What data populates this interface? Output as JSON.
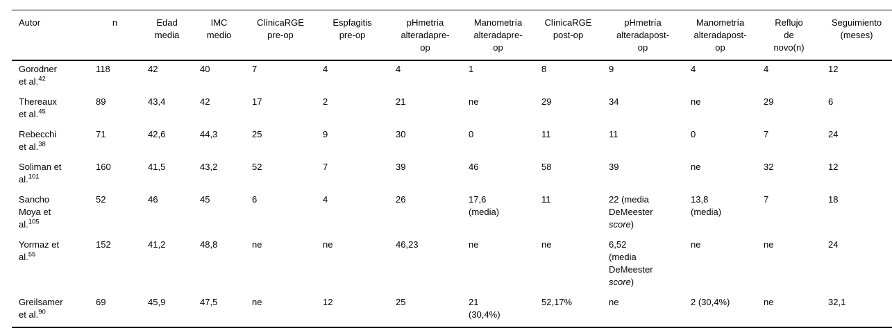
{
  "colors": {
    "background": "#ffffff",
    "text": "#000000",
    "rule": "#000000"
  },
  "table": {
    "columns": [
      {
        "label": "Autor"
      },
      {
        "label": "n"
      },
      {
        "label": "Edad\nmedia"
      },
      {
        "label": "IMC\nmedio"
      },
      {
        "label": "ClínicaRGE\npre-op"
      },
      {
        "label": "Espfagitis\npre-op"
      },
      {
        "label": "pHmetría\nalteradapre-\nop"
      },
      {
        "label": "Manometría\nalteradapre-\nop"
      },
      {
        "label": "ClínicaRGE\npost-op"
      },
      {
        "label": "pHmetría\nalteradapost-\nop"
      },
      {
        "label": "Manometría\nalteradapost-\nop"
      },
      {
        "label": "Reflujo\nde\nnovo(n)"
      },
      {
        "label": "Seguimiento\n(meses)"
      }
    ],
    "rows": [
      [
        "Gorodner\net al.^{42}",
        "118",
        "42",
        "40",
        "7",
        "4",
        "4",
        "1",
        "8",
        "9",
        "4",
        "4",
        "12"
      ],
      [
        "Thereaux\net al.^{45}",
        "89",
        "43,4",
        "42",
        "17",
        "2",
        "21",
        "ne",
        "29",
        "34",
        "ne",
        "29",
        "6"
      ],
      [
        "Rebecchi\net al.^{38}",
        "71",
        "42,6",
        "44,3",
        "25",
        "9",
        "30",
        "0",
        "11",
        "11",
        "0",
        "7",
        "24"
      ],
      [
        "Soliman et\nal.^{101}",
        "160",
        "41,5",
        "43,2",
        "52",
        "7",
        "39",
        "46",
        "58",
        "39",
        "ne",
        "32",
        "12"
      ],
      [
        "Sancho\nMoya et\nal.^{105}",
        "52",
        "46",
        "45",
        "6",
        "4",
        "26",
        "17,6\n(media)",
        "11",
        "22 (media\nDeMeester\n*score*)",
        "13,8\n(media)",
        "7",
        "18"
      ],
      [
        "Yormaz et\nal.^{55}",
        "152",
        "41,2",
        "48,8",
        "ne",
        "ne",
        "46,23",
        "ne",
        "ne",
        "6,52\n(media\nDeMeester\n*score*)",
        "ne",
        "ne",
        "24"
      ],
      [
        "Greilsamer\net al.^{90}",
        "69",
        "45,9",
        "47,5",
        "ne",
        "12",
        "25",
        "21\n(30,4%)",
        "52,17%",
        "ne",
        "2 (30,4%)",
        "ne",
        "32,1"
      ]
    ]
  }
}
